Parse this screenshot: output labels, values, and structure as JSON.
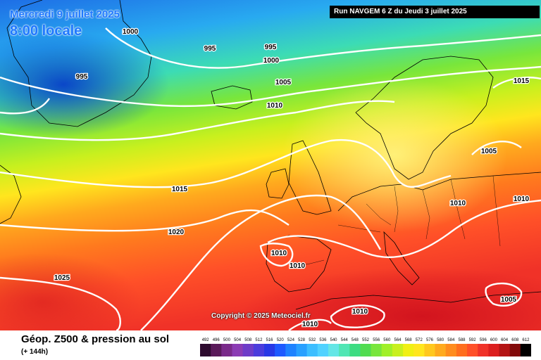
{
  "header": {
    "date": "Mercredi 9 juillet 2025",
    "time": "8:00 locale",
    "run": "Run NAVGEM 6 Z du Jeudi 3 juillet 2025"
  },
  "copyright": "Copyright © 2025 Meteociel.fr",
  "footer": {
    "title": "Géop. Z500 & pression au sol",
    "lead_time": "(+ 144h)"
  },
  "isobar_labels": [
    "1000",
    "995",
    "995",
    "995",
    "1000",
    "1005",
    "1010",
    "1015",
    "1005",
    "1015",
    "1010",
    "1010",
    "1020",
    "1010",
    "1010",
    "1025",
    "1010",
    "1010",
    "1005"
  ],
  "scale": {
    "values": [
      "492",
      "496",
      "500",
      "504",
      "508",
      "512",
      "516",
      "520",
      "524",
      "528",
      "532",
      "536",
      "540",
      "544",
      "548",
      "552",
      "556",
      "560",
      "564",
      "568",
      "572",
      "576",
      "580",
      "584",
      "588",
      "592",
      "596",
      "600",
      "604",
      "608",
      "612"
    ],
    "colors": [
      "#2d0a2e",
      "#5a1a5a",
      "#7a2a8a",
      "#8c3cb4",
      "#6e3cc8",
      "#4b3cdc",
      "#2838e6",
      "#1e5aff",
      "#1e82ff",
      "#28a0ff",
      "#3cbeff",
      "#50d2ff",
      "#64e6e6",
      "#50e6b4",
      "#3cdc82",
      "#50dc50",
      "#78e63c",
      "#a0f028",
      "#c8f01e",
      "#f0f014",
      "#ffe61e",
      "#ffc81e",
      "#ffaa1e",
      "#ff8c1e",
      "#ff6e1e",
      "#ff5028",
      "#f03228",
      "#dc1e1e",
      "#b41414",
      "#820a0a",
      "#000000"
    ]
  }
}
